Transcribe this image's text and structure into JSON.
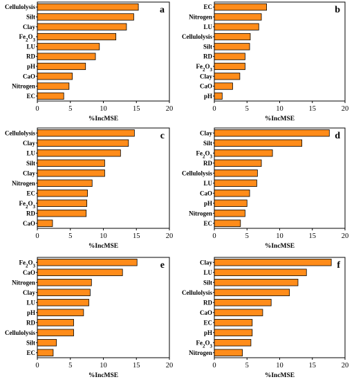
{
  "chart_data": [
    {
      "type": "bar",
      "orientation": "horizontal",
      "panel_label": "a",
      "categories": [
        "Cellulolysis",
        "Silt",
        "Clay",
        "Fe₂O₃",
        "LU",
        "RD",
        "pH",
        "CaO",
        "Nitrogen",
        "EC"
      ],
      "values": [
        15.3,
        14.6,
        13.5,
        11.9,
        9.4,
        8.8,
        7.3,
        5.3,
        4.8,
        4.0
      ],
      "xlabel": "%IncMSE",
      "xlim": [
        0,
        20
      ],
      "xticks": [
        0,
        5,
        10,
        15,
        20
      ],
      "bar_color": "#ff8c1a"
    },
    {
      "type": "bar",
      "orientation": "horizontal",
      "panel_label": "b",
      "categories": [
        "EC",
        "Nitrogen",
        "LU",
        "Cellulolysis",
        "Silt",
        "RD",
        "Fe₂O₃",
        "Clay",
        "CaO",
        "pH"
      ],
      "values": [
        8.0,
        7.2,
        6.8,
        5.5,
        5.4,
        4.7,
        4.7,
        3.9,
        2.8,
        1.2
      ],
      "xlabel": "%IncMSE",
      "xlim": [
        0,
        20
      ],
      "xticks": [
        0,
        5,
        10,
        15,
        20
      ],
      "bar_color": "#ff8c1a"
    },
    {
      "type": "bar",
      "orientation": "horizontal",
      "panel_label": "c",
      "categories": [
        "Cellulolysis",
        "Clay",
        "LU",
        "Silt",
        "Clay",
        "Nitrogen",
        "EC",
        "Fe₂O₃",
        "RD",
        "CaO"
      ],
      "values": [
        14.7,
        13.8,
        12.6,
        10.2,
        10.2,
        8.3,
        7.6,
        7.5,
        7.4,
        2.3
      ],
      "xlabel": "%IncMSE",
      "xlim": [
        0,
        20
      ],
      "xticks": [
        0,
        5,
        10,
        15,
        20
      ],
      "bar_color": "#ff8c1a"
    },
    {
      "type": "bar",
      "orientation": "horizontal",
      "panel_label": "d",
      "categories": [
        "Clay",
        "Silt",
        "Fe₂O₃",
        "RD",
        "Cellulolysis",
        "LU",
        "CaO",
        "pH",
        "Nitrogen",
        "EC"
      ],
      "values": [
        17.6,
        13.4,
        8.9,
        7.2,
        6.6,
        6.5,
        5.4,
        5.0,
        4.7,
        4.0
      ],
      "xlabel": "%IncMSE",
      "xlim": [
        0,
        20
      ],
      "xticks": [
        0,
        5,
        10,
        15,
        20
      ],
      "bar_color": "#ff8c1a"
    },
    {
      "type": "bar",
      "orientation": "horizontal",
      "panel_label": "e",
      "categories": [
        "Fe₂O₃",
        "CaO",
        "Nitrogen",
        "Clay",
        "LU",
        "pH",
        "RD",
        "Cellulolysis",
        "Silt",
        "EC"
      ],
      "values": [
        15.1,
        12.9,
        8.2,
        8.0,
        7.8,
        7.0,
        5.5,
        5.5,
        2.9,
        2.4
      ],
      "xlabel": "%IncMSE",
      "xlim": [
        0,
        20
      ],
      "xticks": [
        0,
        5,
        10,
        15,
        20
      ],
      "bar_color": "#ff8c1a"
    },
    {
      "type": "bar",
      "orientation": "horizontal",
      "panel_label": "f",
      "categories": [
        "Clay",
        "LU",
        "Silt",
        "Cellulolysis",
        "RD",
        "CaO",
        "EC",
        "pH",
        "Fe₂O₃",
        "Nitrogen"
      ],
      "values": [
        17.9,
        14.1,
        12.8,
        11.5,
        8.7,
        7.4,
        5.8,
        5.8,
        5.6,
        4.3
      ],
      "xlabel": "%IncMSE",
      "xlim": [
        0,
        20
      ],
      "xticks": [
        0,
        5,
        10,
        15,
        20
      ],
      "bar_color": "#ff8c1a"
    }
  ]
}
